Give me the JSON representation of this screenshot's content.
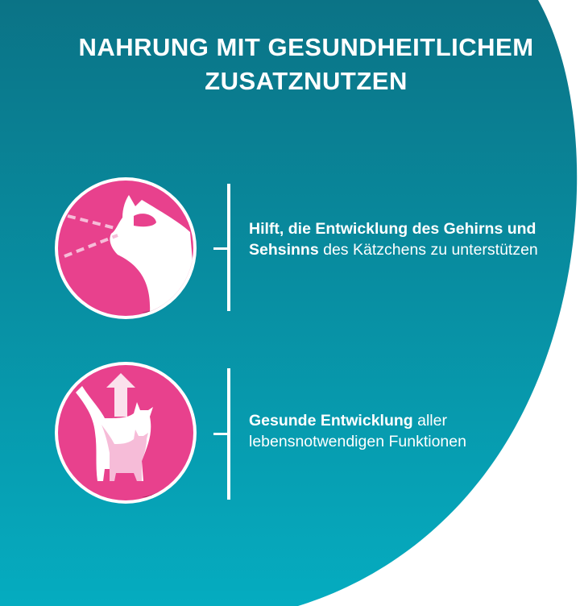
{
  "colors": {
    "teal_top": "#0b7386",
    "teal_bottom": "#05acc0",
    "pink": "#e8418d",
    "pink_shadow": "#a6285f",
    "white": "#ffffff",
    "light_pink": "#f6bcd8"
  },
  "title": {
    "line1": "NAHRUNG MIT GESUNDHEITLICHEM",
    "line2": "ZUSATZNUTZEN"
  },
  "benefits": [
    {
      "icon": "cat-eye-brain-icon",
      "bold": "Hilft, die Entwicklung des Gehirns und Sehsinns",
      "regular": " des Kätzchens zu unterstützen"
    },
    {
      "icon": "kitten-growth-icon",
      "bold": "Gesunde Entwicklung",
      "regular": " aller lebensnotwendigen Funktionen"
    }
  ]
}
